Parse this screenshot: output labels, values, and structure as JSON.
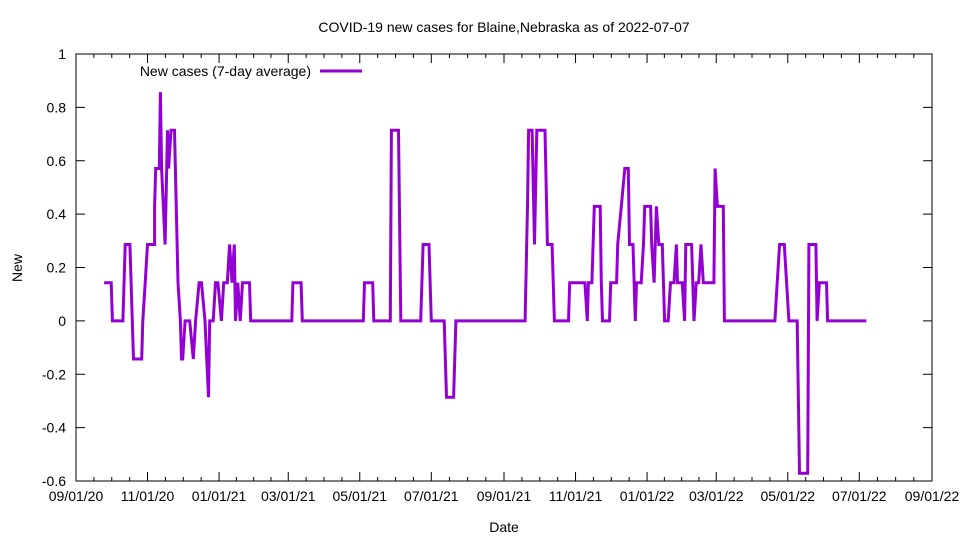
{
  "chart_data": {
    "type": "line",
    "title": "COVID-19 new cases for Blaine,Nebraska as of 2022-07-07",
    "xlabel": "Date",
    "ylabel": "New",
    "x_origin_date": "2020-09-01",
    "x_units": "days since 2020-09-01",
    "xlim": [
      0,
      730
    ],
    "ylim": [
      -0.6,
      1
    ],
    "x_tick_labels": [
      "09/01/20",
      "11/01/20",
      "01/01/21",
      "03/01/21",
      "05/01/21",
      "07/01/21",
      "09/01/21",
      "11/01/21",
      "01/01/22",
      "03/01/22",
      "05/01/22",
      "07/01/22",
      "09/01/22"
    ],
    "x_tick_days": [
      0,
      61,
      122,
      181,
      242,
      303,
      365,
      426,
      487,
      546,
      607,
      668,
      730
    ],
    "y_ticks": [
      -0.6,
      -0.4,
      -0.2,
      0,
      0.2,
      0.4,
      0.6,
      0.8,
      1
    ],
    "y_tick_labels": [
      "-0.6",
      "-0.4",
      "-0.2",
      "0",
      "0.2",
      "0.4",
      "0.6",
      "0.8",
      "1"
    ],
    "legend_position": "top-left",
    "grid": false,
    "series": [
      {
        "name": "New cases (7-day average)",
        "color": "#9400d3",
        "x": [
          24,
          30,
          31,
          40,
          42,
          46,
          49,
          56,
          57,
          59,
          61,
          67,
          67,
          68,
          71,
          72,
          73,
          76,
          78,
          79,
          81,
          84,
          87,
          89,
          90,
          91,
          93,
          97,
          100,
          102,
          105,
          107,
          110,
          113,
          114,
          117,
          119,
          121,
          124,
          126,
          129,
          131,
          133,
          135,
          136,
          138,
          140,
          142,
          148,
          149,
          184,
          185,
          192,
          193,
          245,
          246,
          253,
          254,
          268,
          269,
          275,
          277,
          294,
          296,
          301,
          303,
          314,
          316,
          322,
          324,
          383,
          385,
          386,
          389,
          391,
          393,
          400,
          402,
          406,
          408,
          420,
          421,
          434,
          436,
          437,
          440,
          442,
          447,
          448,
          449,
          455,
          456,
          461,
          462,
          465,
          468,
          471,
          472,
          475,
          477,
          478,
          482,
          484,
          485,
          490,
          491,
          493,
          495,
          497,
          500,
          502,
          505,
          507,
          510,
          512,
          513,
          517,
          519,
          520,
          525,
          527,
          529,
          531,
          533,
          535,
          544,
          545,
          547,
          552,
          553,
          596,
          598,
          600,
          604,
          606,
          608,
          615,
          617,
          624,
          625,
          631,
          632,
          634,
          640,
          641,
          674
        ],
        "y": [
          0.143,
          0.143,
          0,
          0,
          0.286,
          0.286,
          -0.143,
          -0.143,
          0,
          0.143,
          0.286,
          0.286,
          0.429,
          0.571,
          0.571,
          0.857,
          0.571,
          0.286,
          0.714,
          0.571,
          0.714,
          0.714,
          0.143,
          0,
          -0.143,
          -0.143,
          0,
          0,
          -0.143,
          0,
          0.143,
          0.143,
          0,
          -0.286,
          0,
          0,
          0.143,
          0.143,
          0,
          0.143,
          0.143,
          0.286,
          0.143,
          0.286,
          0,
          0.143,
          0,
          0.143,
          0.143,
          0,
          0,
          0.143,
          0.143,
          0,
          0,
          0.143,
          0.143,
          0,
          0,
          0.714,
          0.714,
          0,
          0,
          0.286,
          0.286,
          0,
          0,
          -0.286,
          -0.286,
          0,
          0,
          0.429,
          0.714,
          0.714,
          0.286,
          0.714,
          0.714,
          0.286,
          0.286,
          0,
          0,
          0.143,
          0.143,
          0,
          0.143,
          0.143,
          0.429,
          0.429,
          0.143,
          0,
          0,
          0.143,
          0.143,
          0.286,
          0.429,
          0.571,
          0.571,
          0.286,
          0.286,
          0,
          0.143,
          0.143,
          0.286,
          0.429,
          0.429,
          0.286,
          0.143,
          0.429,
          0.286,
          0.286,
          0,
          0,
          0.143,
          0.143,
          0.286,
          0.143,
          0.143,
          0,
          0.286,
          0.286,
          0,
          0.143,
          0.143,
          0.286,
          0.143,
          0.143,
          0.571,
          0.429,
          0.429,
          0,
          0,
          0.143,
          0.286,
          0.286,
          0.143,
          0,
          0,
          -0.571,
          -0.571,
          0.286,
          0.286,
          0,
          0.143,
          0.143,
          0,
          0
        ]
      }
    ]
  }
}
